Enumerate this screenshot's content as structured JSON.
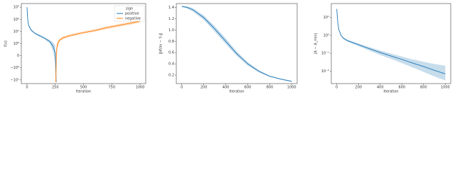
{
  "chart_data": [
    {
      "type": "line",
      "xlabel": "Iteration",
      "ylabel": "f(x)",
      "yscale": "symlog",
      "xlim": [
        -50,
        1050
      ],
      "xticks": [
        0,
        250,
        500,
        750,
        1000
      ],
      "ylim": [
        -20,
        2000
      ],
      "yticks": [
        {
          "value": 1000,
          "label": "10³"
        },
        {
          "value": 100,
          "label": "10²"
        },
        {
          "value": 10,
          "label": "10¹"
        },
        {
          "value": 1,
          "label": "10⁰"
        },
        0,
        {
          "value": -1,
          "label": "−10⁰"
        },
        {
          "value": -10,
          "label": "−10¹"
        }
      ],
      "legend": "upper right",
      "legend_title": "sign",
      "series": [
        {
          "name": "positive",
          "color": "#1f77b4",
          "x": [
            0,
            5,
            10,
            20,
            40,
            70,
            100,
            150,
            200,
            230,
            250,
            258
          ],
          "values": [
            1000,
            150,
            50,
            25,
            12,
            7,
            5,
            3,
            1.5,
            0.8,
            0.2,
            -15
          ],
          "lower": [
            900,
            120,
            40,
            20,
            10,
            6,
            4.2,
            2.5,
            1.1,
            0.4,
            -0.5,
            -18
          ],
          "upper": [
            1100,
            180,
            60,
            30,
            14,
            8,
            6,
            3.6,
            2,
            1.3,
            0.8,
            -10
          ]
        },
        {
          "name": "negative",
          "color": "#ff7f0e",
          "x": [
            255,
            260,
            270,
            290,
            320,
            360,
            420,
            500,
            600,
            700,
            800,
            900,
            1000
          ],
          "values": [
            -15,
            0.3,
            1,
            2,
            3,
            4,
            5.5,
            8,
            12,
            20,
            30,
            45,
            70
          ],
          "lower": [
            -18,
            -0.5,
            0.6,
            1.5,
            2.3,
            3.2,
            4.4,
            6.5,
            9.5,
            15,
            23,
            34,
            52
          ],
          "upper": [
            -10,
            0.8,
            1.5,
            2.7,
            3.9,
            5.1,
            7,
            10,
            15,
            26,
            39,
            60,
            95
          ]
        }
      ]
    },
    {
      "type": "line",
      "xlabel": "Iteration",
      "ylabel": "‖∂f/∂x − Yₙ‖",
      "yscale": "linear",
      "xlim": [
        -50,
        1050
      ],
      "xticks": [
        0,
        200,
        400,
        600,
        800,
        1000
      ],
      "ylim": [
        0.05,
        1.47
      ],
      "yticks": [
        0.2,
        0.4,
        0.6,
        0.8,
        {
          "value": 1,
          "label": "1.0"
        },
        1.2,
        1.4
      ],
      "series": [
        {
          "color": "#1f77b4",
          "x": [
            0,
            50,
            100,
            200,
            300,
            400,
            500,
            600,
            700,
            800,
            900,
            1000
          ],
          "values": [
            1.42,
            1.4,
            1.36,
            1.22,
            1.02,
            0.8,
            0.58,
            0.4,
            0.27,
            0.18,
            0.13,
            0.09
          ],
          "lower": [
            1.41,
            1.38,
            1.33,
            1.18,
            0.97,
            0.75,
            0.54,
            0.37,
            0.25,
            0.17,
            0.12,
            0.08
          ],
          "upper": [
            1.43,
            1.42,
            1.39,
            1.26,
            1.07,
            0.85,
            0.62,
            0.43,
            0.29,
            0.19,
            0.14,
            0.1
          ]
        }
      ]
    },
    {
      "type": "line",
      "xlabel": "Iteration",
      "ylabel": "|A − A_min|",
      "yscale": "log",
      "xlim": [
        -50,
        1050
      ],
      "xticks": [
        0,
        200,
        400,
        600,
        800,
        1000
      ],
      "ylim": [
        0.002,
        60
      ],
      "yticks": [
        {
          "value": 10,
          "label": "10¹"
        },
        {
          "value": 1,
          "label": "10⁰"
        },
        {
          "value": 0.1,
          "label": "10⁻¹"
        },
        {
          "value": 0.01,
          "label": "10⁻²"
        }
      ],
      "series": [
        {
          "color": "#1f77b4",
          "x": [
            0,
            10,
            20,
            40,
            60,
            100,
            200,
            300,
            400,
            500,
            600,
            700,
            800,
            900,
            1000
          ],
          "values": [
            30,
            5,
            2,
            1,
            0.7,
            0.5,
            0.3,
            0.18,
            0.11,
            0.07,
            0.045,
            0.028,
            0.018,
            0.011,
            0.007
          ],
          "lower": [
            28,
            4.5,
            1.8,
            0.9,
            0.62,
            0.44,
            0.25,
            0.14,
            0.08,
            0.048,
            0.028,
            0.016,
            0.009,
            0.005,
            0.003
          ],
          "upper": [
            32,
            5.5,
            2.2,
            1.1,
            0.78,
            0.56,
            0.35,
            0.22,
            0.14,
            0.095,
            0.065,
            0.045,
            0.033,
            0.025,
            0.02
          ]
        }
      ]
    }
  ]
}
